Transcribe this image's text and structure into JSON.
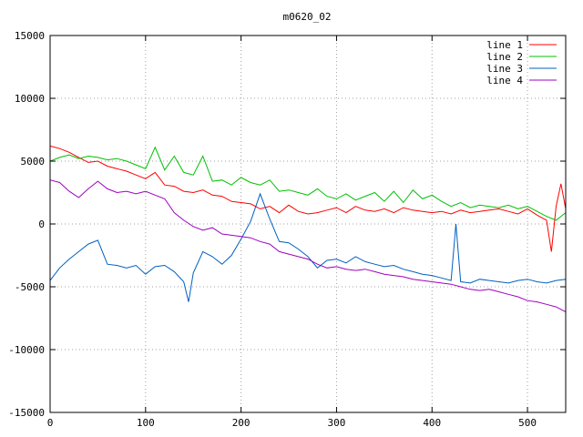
{
  "chart_data": {
    "type": "line",
    "title": "m0620_02",
    "xlabel": "",
    "ylabel": "",
    "xlim": [
      0,
      540
    ],
    "ylim": [
      -15000,
      15000
    ],
    "xticks": [
      0,
      100,
      200,
      300,
      400,
      500
    ],
    "yticks": [
      -15000,
      -10000,
      -5000,
      0,
      5000,
      10000,
      15000
    ],
    "grid": true,
    "legend_position": "top-right",
    "series": [
      {
        "name": "line 1",
        "color": "#ff0000",
        "x": [
          0,
          10,
          20,
          30,
          40,
          50,
          60,
          70,
          80,
          90,
          100,
          110,
          120,
          130,
          140,
          150,
          160,
          170,
          180,
          190,
          200,
          210,
          220,
          230,
          240,
          250,
          260,
          270,
          280,
          290,
          300,
          310,
          320,
          330,
          340,
          350,
          360,
          370,
          380,
          390,
          400,
          410,
          420,
          430,
          440,
          450,
          460,
          470,
          480,
          490,
          500,
          510,
          520,
          525,
          530,
          535,
          540
        ],
        "values": [
          6200,
          6000,
          5700,
          5300,
          4900,
          5000,
          4600,
          4400,
          4200,
          3900,
          3600,
          4100,
          3100,
          3000,
          2600,
          2500,
          2700,
          2300,
          2200,
          1800,
          1700,
          1600,
          1200,
          1400,
          900,
          1500,
          1000,
          800,
          900,
          1100,
          1300,
          900,
          1400,
          1100,
          1000,
          1200,
          900,
          1300,
          1100,
          1000,
          900,
          1000,
          800,
          1100,
          900,
          1000,
          1100,
          1200,
          1000,
          800,
          1200,
          700,
          300,
          -2200,
          1400,
          3200,
          1200
        ]
      },
      {
        "name": "line 2",
        "color": "#00c000",
        "x": [
          0,
          10,
          20,
          30,
          40,
          50,
          60,
          70,
          80,
          90,
          100,
          110,
          120,
          130,
          140,
          150,
          160,
          170,
          180,
          190,
          200,
          210,
          220,
          230,
          240,
          250,
          260,
          270,
          280,
          290,
          300,
          310,
          320,
          330,
          340,
          350,
          360,
          370,
          380,
          390,
          400,
          410,
          420,
          430,
          440,
          450,
          460,
          470,
          480,
          490,
          500,
          510,
          520,
          530,
          540
        ],
        "values": [
          5000,
          5300,
          5500,
          5200,
          5400,
          5300,
          5100,
          5200,
          5000,
          4700,
          4400,
          6100,
          4300,
          5400,
          4100,
          3900,
          5400,
          3400,
          3500,
          3100,
          3700,
          3300,
          3100,
          3500,
          2600,
          2700,
          2500,
          2300,
          2800,
          2200,
          2000,
          2400,
          1900,
          2200,
          2500,
          1800,
          2600,
          1700,
          2700,
          2000,
          2300,
          1800,
          1400,
          1700,
          1300,
          1500,
          1400,
          1300,
          1500,
          1200,
          1400,
          1000,
          600,
          300,
          900
        ]
      },
      {
        "name": "line 3",
        "color": "#0060c0",
        "x": [
          0,
          10,
          20,
          30,
          40,
          50,
          60,
          70,
          80,
          90,
          100,
          110,
          120,
          130,
          140,
          145,
          150,
          160,
          170,
          180,
          190,
          200,
          210,
          220,
          230,
          240,
          250,
          260,
          270,
          280,
          290,
          300,
          310,
          320,
          330,
          340,
          350,
          360,
          370,
          380,
          390,
          400,
          410,
          420,
          425,
          430,
          440,
          450,
          460,
          470,
          480,
          490,
          500,
          510,
          520,
          530,
          540
        ],
        "values": [
          -4500,
          -3500,
          -2800,
          -2200,
          -1600,
          -1300,
          -3200,
          -3300,
          -3500,
          -3300,
          -4000,
          -3400,
          -3300,
          -3800,
          -4600,
          -6200,
          -3900,
          -2200,
          -2600,
          -3200,
          -2500,
          -1200,
          200,
          2400,
          400,
          -1400,
          -1500,
          -2000,
          -2600,
          -3500,
          -2900,
          -2800,
          -3100,
          -2600,
          -3000,
          -3200,
          -3400,
          -3300,
          -3600,
          -3800,
          -4000,
          -4100,
          -4300,
          -4500,
          0,
          -4600,
          -4700,
          -4400,
          -4500,
          -4600,
          -4700,
          -4500,
          -4400,
          -4600,
          -4700,
          -4500,
          -4400
        ]
      },
      {
        "name": "line 4",
        "color": "#a000c0",
        "x": [
          0,
          10,
          20,
          30,
          40,
          50,
          60,
          70,
          80,
          90,
          100,
          110,
          120,
          130,
          140,
          150,
          160,
          170,
          180,
          190,
          200,
          210,
          220,
          230,
          240,
          250,
          260,
          270,
          280,
          290,
          300,
          310,
          320,
          330,
          340,
          350,
          360,
          370,
          380,
          390,
          400,
          410,
          420,
          430,
          440,
          450,
          460,
          470,
          480,
          490,
          500,
          510,
          520,
          530,
          540
        ],
        "values": [
          3500,
          3300,
          2600,
          2100,
          2800,
          3400,
          2800,
          2500,
          2600,
          2400,
          2600,
          2300,
          2000,
          900,
          300,
          -200,
          -500,
          -300,
          -800,
          -900,
          -1000,
          -1100,
          -1400,
          -1600,
          -2200,
          -2400,
          -2600,
          -2800,
          -3200,
          -3500,
          -3400,
          -3600,
          -3700,
          -3600,
          -3800,
          -4000,
          -4100,
          -4200,
          -4400,
          -4500,
          -4600,
          -4700,
          -4800,
          -5000,
          -5200,
          -5300,
          -5200,
          -5400,
          -5600,
          -5800,
          -6100,
          -6200,
          -6400,
          -6600,
          -7000
        ]
      }
    ]
  }
}
